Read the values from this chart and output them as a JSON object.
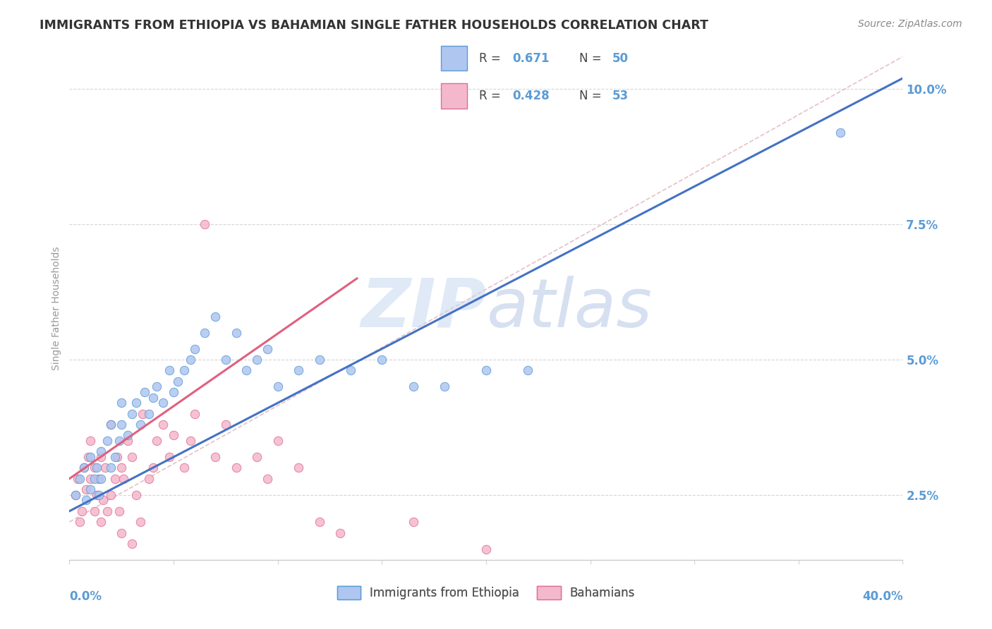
{
  "title": "IMMIGRANTS FROM ETHIOPIA VS BAHAMIAN SINGLE FATHER HOUSEHOLDS CORRELATION CHART",
  "source": "Source: ZipAtlas.com",
  "ylabel": "Single Father Households",
  "r1": 0.671,
  "n1": 50,
  "r2": 0.428,
  "n2": 53,
  "color1": "#aec6f0",
  "color2": "#f4b8cc",
  "color1_edge": "#5b9bd5",
  "color2_edge": "#e07090",
  "trend1_color": "#4472c4",
  "trend2_color": "#e06080",
  "diag_color": "#f0a0b0",
  "ytick_color": "#5b9bd5",
  "xlim": [
    0.0,
    0.4
  ],
  "ylim": [
    0.013,
    0.106
  ],
  "yticks": [
    0.025,
    0.05,
    0.075,
    0.1
  ],
  "ytick_labels": [
    "2.5%",
    "5.0%",
    "7.5%",
    "10.0%"
  ],
  "xtick_left_label": "0.0%",
  "xtick_right_label": "40.0%",
  "watermark_zip_color": "#c5d8f0",
  "watermark_atlas_color": "#b8cce8"
}
